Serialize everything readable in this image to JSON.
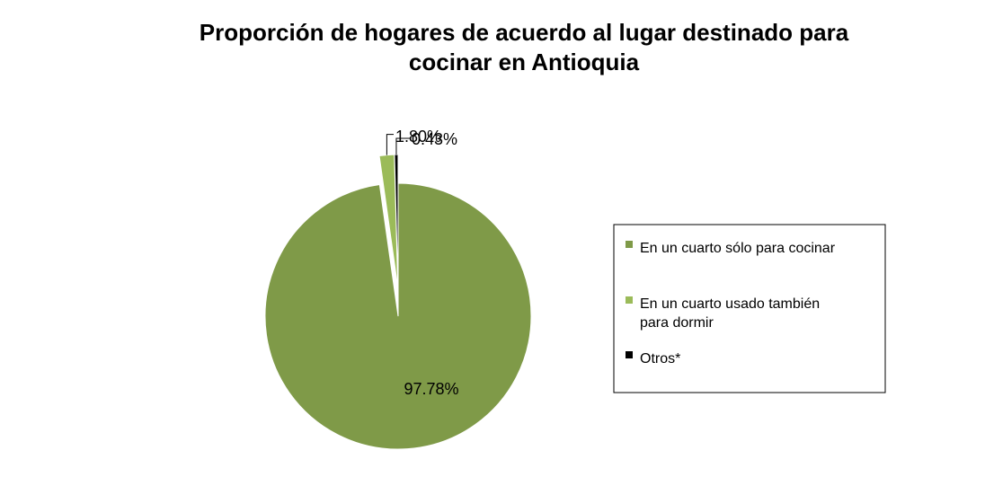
{
  "chart_data": {
    "type": "pie",
    "title": "Proporción de hogares de acuerdo al lugar destinado para cocinar en Antioquia",
    "categories": [
      "En un cuarto sólo para cocinar",
      "En un cuarto usado también para dormir",
      "Otros*"
    ],
    "values": [
      97.78,
      1.8,
      0.43
    ],
    "value_labels": [
      "97.78%",
      "1.80%",
      "0.43%"
    ],
    "colors": [
      "#7f9a48",
      "#9bbb59",
      "#000000"
    ],
    "legend": "right"
  }
}
